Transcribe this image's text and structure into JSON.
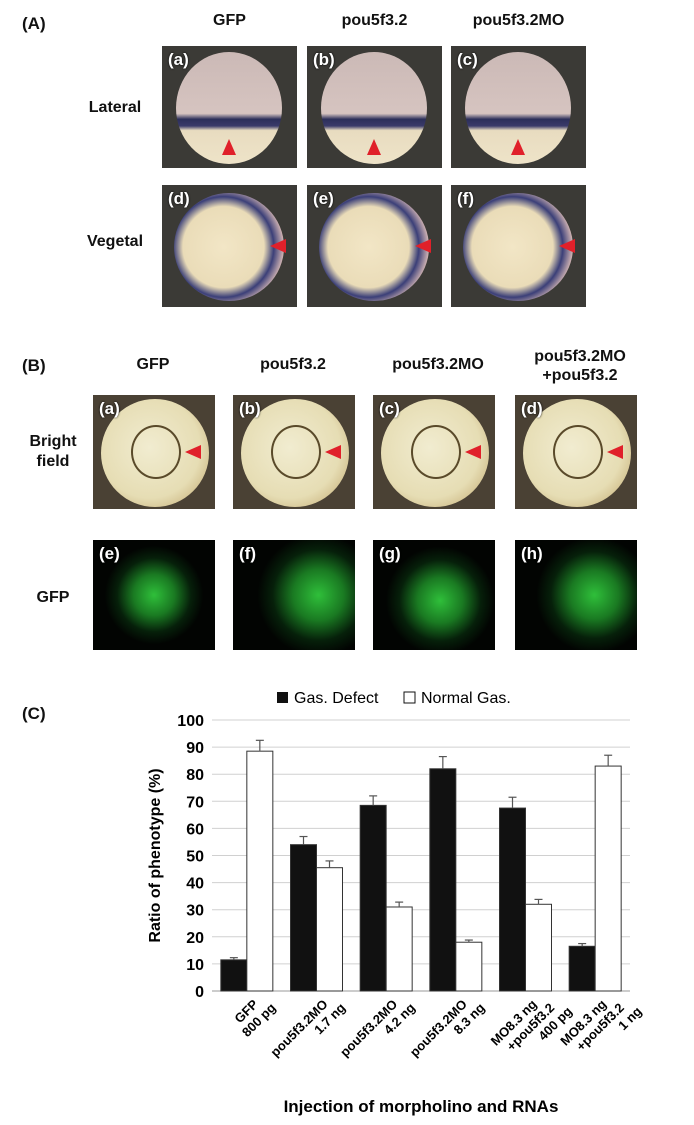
{
  "panel_A": {
    "label": "(A)",
    "columns": [
      "GFP",
      "pou5f3.2",
      "pou5f3.2MO"
    ],
    "rows": [
      "Lateral",
      "Vegetal"
    ],
    "sublabels": [
      "(a)",
      "(b)",
      "(c)",
      "(d)",
      "(e)",
      "(f)"
    ]
  },
  "panel_B": {
    "label": "(B)",
    "columns": [
      "GFP",
      "pou5f3.2",
      "pou5f3.2MO",
      "pou5f3.2MO\n+pou5f3.2"
    ],
    "column4_line1": "pou5f3.2MO",
    "column4_line2": "+pou5f3.2",
    "rows": [
      "Bright field",
      "GFP"
    ],
    "row1_line1": "Bright",
    "row1_line2": "field",
    "sublabels": [
      "(a)",
      "(b)",
      "(c)",
      "(d)",
      "(e)",
      "(f)",
      "(g)",
      "(h)"
    ]
  },
  "panel_C": {
    "label": "(C)"
  },
  "colors": {
    "arrowhead": "#e0202a",
    "defect": "#111111",
    "normal": "#ffffff",
    "gfp": "#2fbf3a"
  },
  "chart_data": {
    "type": "bar",
    "ylabel": "Ratio of phenotype (%)",
    "xlabel": "Injection of morpholino and RNAs",
    "ylim": [
      0,
      100
    ],
    "yticks": [
      0,
      10,
      20,
      30,
      40,
      50,
      60,
      70,
      80,
      90,
      100
    ],
    "grid": true,
    "legend_position": "top",
    "categories": [
      [
        "GFP",
        "800 pg"
      ],
      [
        "pou5f3.2MO",
        "1.7 ng"
      ],
      [
        "pou5f3.2MO",
        "4.2 ng"
      ],
      [
        "pou5f3.2MO",
        "8.3 ng"
      ],
      [
        "MO8.3 ng",
        "+pou5f3.2",
        "400 pg"
      ],
      [
        "MO8.3 ng",
        "+pou5f3.2",
        "1 ng"
      ]
    ],
    "series": [
      {
        "name": "Gas. Defect",
        "values": [
          11.5,
          54,
          68.5,
          82,
          67.5,
          16.5
        ],
        "errors": [
          0.8,
          3,
          3.5,
          4.5,
          4,
          1
        ]
      },
      {
        "name": "Normal Gas.",
        "values": [
          88.5,
          45.5,
          31,
          18,
          32,
          83
        ],
        "errors": [
          4,
          2.5,
          1.8,
          0.8,
          1.8,
          4
        ]
      }
    ]
  }
}
